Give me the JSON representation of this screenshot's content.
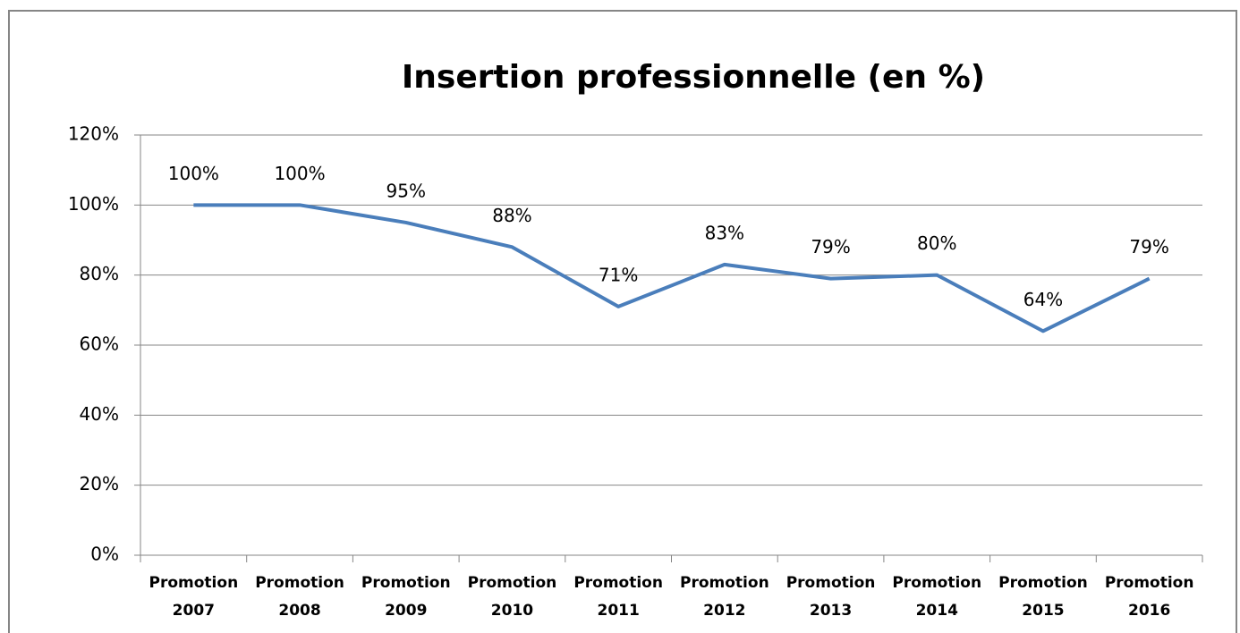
{
  "chart_data": {
    "type": "line",
    "title": "Insertion professionnelle  (en %)",
    "categories": [
      "Promotion 2007",
      "Promotion 2008",
      "Promotion 2009",
      "Promotion 2010",
      "Promotion 2011",
      "Promotion 2012",
      "Promotion 2013",
      "Promotion 2014",
      "Promotion 2015",
      "Promotion 2016"
    ],
    "series": [
      {
        "color": "#4a7ebb",
        "values": [
          100,
          100,
          95,
          88,
          71,
          83,
          79,
          80,
          64,
          79
        ],
        "value_labels": [
          "100%",
          "100%",
          "95%",
          "88%",
          "71%",
          "83%",
          "79%",
          "80%",
          "64%",
          "79%"
        ]
      }
    ],
    "ylim": [
      0,
      120
    ],
    "yticks": [
      {
        "value": 0,
        "label": "0%"
      },
      {
        "value": 20,
        "label": "20%"
      },
      {
        "value": 40,
        "label": "40%"
      },
      {
        "value": 60,
        "label": "60%"
      },
      {
        "value": 80,
        "label": "80%"
      },
      {
        "value": 100,
        "label": "100%"
      },
      {
        "value": 120,
        "label": "120%"
      }
    ],
    "grid": true
  }
}
